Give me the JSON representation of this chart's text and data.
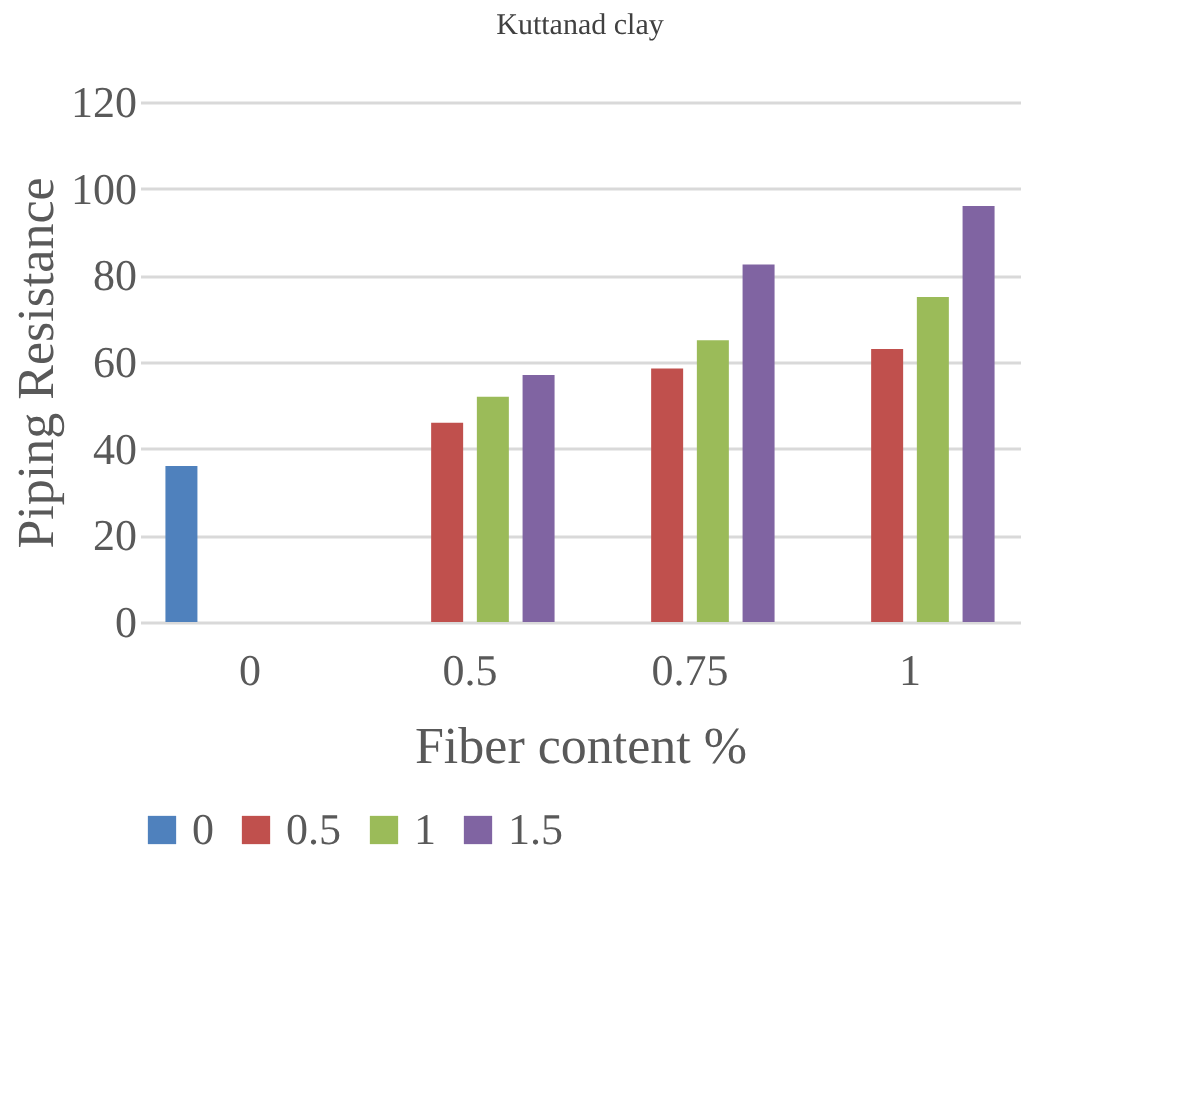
{
  "chart_data": {
    "type": "bar",
    "title": "Kuttanad clay",
    "xlabel": "Fiber content %",
    "ylabel": "Piping Resistance",
    "categories": [
      "0",
      "0.5",
      "0.75",
      "1"
    ],
    "series": [
      {
        "name": "0",
        "color": "#4f81bd",
        "values": [
          36,
          null,
          null,
          null
        ]
      },
      {
        "name": "0.5",
        "color": "#c0504d",
        "values": [
          null,
          46,
          58.5,
          63
        ]
      },
      {
        "name": "1",
        "color": "#9bbb59",
        "values": [
          null,
          52,
          65,
          75
        ]
      },
      {
        "name": "1.5",
        "color": "#8064a2",
        "values": [
          null,
          57,
          82.5,
          96
        ]
      }
    ],
    "ylim": [
      0,
      120
    ],
    "yticks": [
      0,
      20,
      40,
      60,
      80,
      100,
      120
    ],
    "grid": "y",
    "legend": "bottom"
  }
}
